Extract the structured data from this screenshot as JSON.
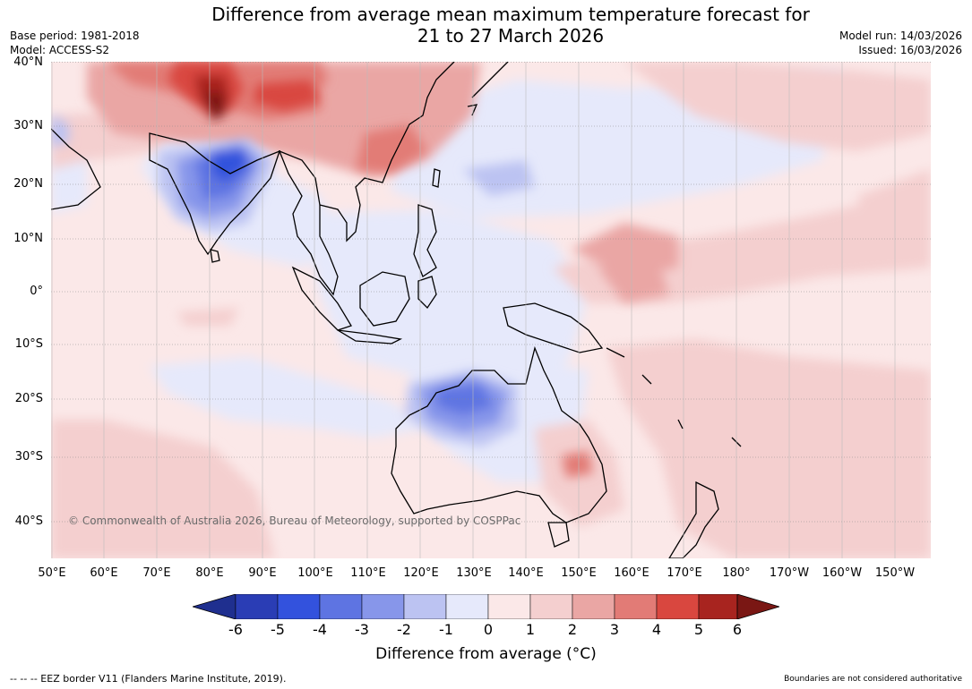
{
  "header": {
    "title_line1": "Difference from average mean maximum temperature forecast for",
    "title_line2": "21 to 27 March 2026",
    "base_period": "Base period: 1981-2018",
    "model": "Model: ACCESS-S2",
    "model_run": "Model run: 14/03/2026",
    "issued": "Issued: 16/03/2026"
  },
  "map": {
    "copyright": "© Commonwealth of Australia 2026, Bureau of Meteorology, supported by COSPPac",
    "lat_labels": [
      "40°N",
      "30°N",
      "20°N",
      "10°N",
      "0°",
      "10°S",
      "20°S",
      "30°S",
      "40°S"
    ],
    "lon_labels": [
      "50°E",
      "60°E",
      "70°E",
      "80°E",
      "90°E",
      "100°E",
      "110°E",
      "120°E",
      "130°E",
      "140°E",
      "150°E",
      "160°E",
      "170°E",
      "180°",
      "170°W",
      "160°W",
      "150°W"
    ]
  },
  "colorbar": {
    "label": "Difference from average (°C)",
    "ticks": [
      "-6",
      "-5",
      "-4",
      "-3",
      "-2",
      "-1",
      "0",
      "1",
      "2",
      "3",
      "4",
      "5",
      "6"
    ],
    "colors": [
      "#1f2f8f",
      "#2a3db5",
      "#3352dd",
      "#5e74e2",
      "#8796ea",
      "#bcc3f2",
      "#e6e9fb",
      "#fbe8e8",
      "#f4cfcf",
      "#eaa6a4",
      "#e27b76",
      "#d9473f",
      "#a8241f",
      "#7a1714"
    ]
  },
  "footer": {
    "eez": "--  --  -- EEZ border V11 (Flanders Marine Institute, 2019).",
    "disclaimer": "Boundaries are not considered authoritative"
  }
}
